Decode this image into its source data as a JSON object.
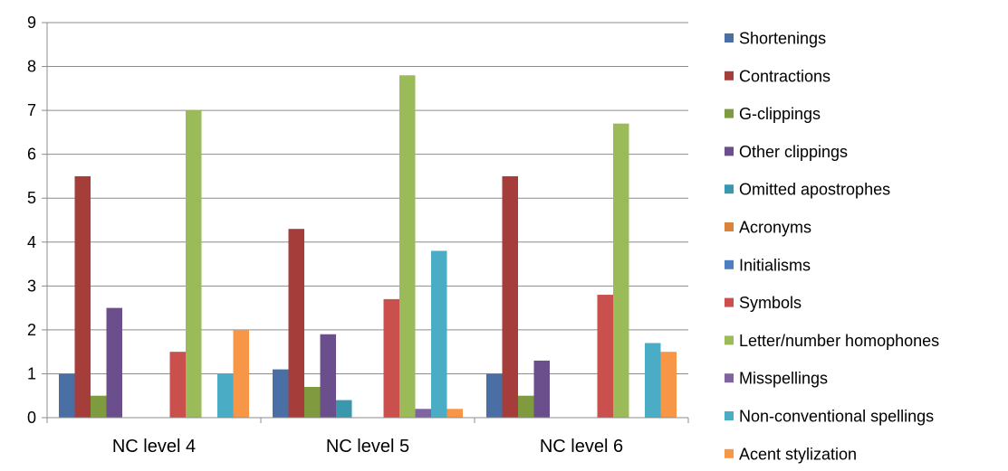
{
  "chart_data": {
    "type": "bar",
    "title": "",
    "xlabel": "",
    "ylabel": "",
    "ylim": [
      0,
      9
    ],
    "yticks": [
      0,
      1,
      2,
      3,
      4,
      5,
      6,
      7,
      8,
      9
    ],
    "grid": "horizontal",
    "legend_position": "right",
    "categories": [
      "NC level 4",
      "NC level 5",
      "NC level 6"
    ],
    "series": [
      {
        "name": "Shortenings",
        "color": "#4a6fa5",
        "values": [
          1,
          1.1,
          1
        ]
      },
      {
        "name": "Contractions",
        "color": "#a53d3a",
        "values": [
          5.5,
          4.3,
          5.5
        ]
      },
      {
        "name": "G-clippings",
        "color": "#7f9a3f",
        "values": [
          0.5,
          0.7,
          0.5
        ]
      },
      {
        "name": "Other clippings",
        "color": "#6a4f8c",
        "values": [
          2.5,
          1.9,
          1.3
        ]
      },
      {
        "name": "Omitted apostrophes",
        "color": "#3a97ad",
        "values": [
          0,
          0.4,
          0
        ]
      },
      {
        "name": "Acronyms",
        "color": "#d8843a",
        "values": [
          0,
          0,
          0
        ]
      },
      {
        "name": "Initialisms",
        "color": "#4c7fc0",
        "values": [
          0,
          0,
          0
        ]
      },
      {
        "name": "Symbols",
        "color": "#c9504c",
        "values": [
          1.5,
          2.7,
          2.8
        ]
      },
      {
        "name": "Letter/number homophones",
        "color": "#9bbb59",
        "values": [
          7,
          7.8,
          6.7
        ]
      },
      {
        "name": "Misspellings",
        "color": "#8064a2",
        "values": [
          0,
          0.2,
          0
        ]
      },
      {
        "name": "Non-conventional spellings",
        "color": "#4bacc6",
        "values": [
          1,
          3.8,
          1.7
        ]
      },
      {
        "name": "Acent stylization",
        "color": "#f79646",
        "values": [
          2,
          0.2,
          1.5
        ]
      }
    ]
  }
}
